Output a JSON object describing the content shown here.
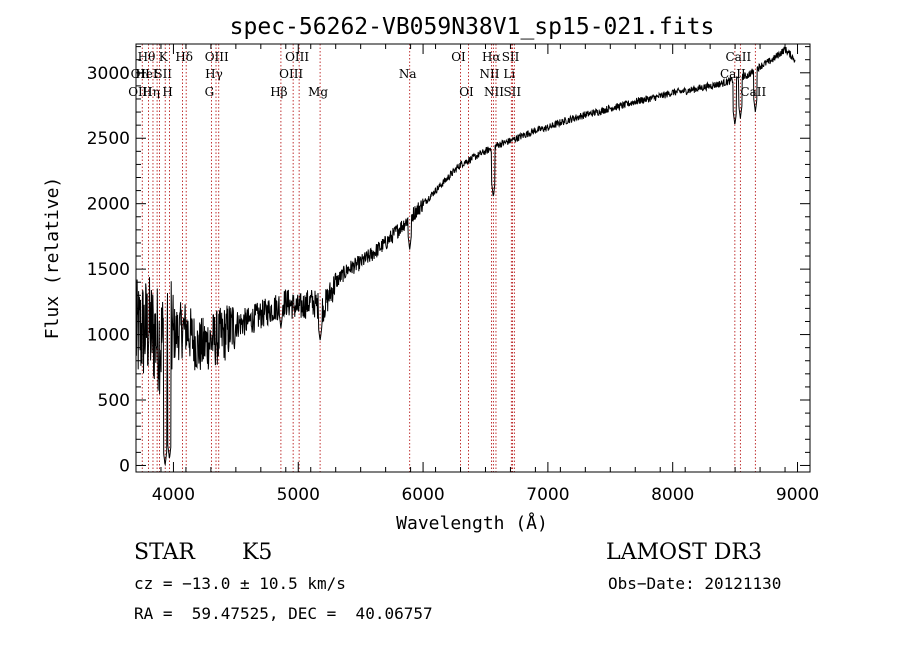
{
  "chart_data": {
    "type": "line",
    "title": "spec-56262-VB059N38V1_sp15-021.fits",
    "xlabel": "Wavelength (Å)",
    "ylabel": "Flux (relative)",
    "xlim": [
      3700,
      9100
    ],
    "ylim": [
      -50,
      3220
    ],
    "xticks": [
      4000,
      5000,
      6000,
      7000,
      8000,
      9000
    ],
    "xtick_labels": [
      "4000",
      "5000",
      "6000",
      "7000",
      "8000",
      "9000"
    ],
    "yticks": [
      0,
      500,
      1000,
      1500,
      2000,
      2500,
      3000
    ],
    "ytick_labels": [
      "0",
      "500",
      "1000",
      "1500",
      "2000",
      "2500",
      "3000"
    ],
    "series": [
      {
        "name": "flux",
        "anchors": [
          [
            3700,
            1000
          ],
          [
            3800,
            1050
          ],
          [
            3900,
            950
          ],
          [
            4000,
            1000
          ],
          [
            4100,
            1050
          ],
          [
            4200,
            900
          ],
          [
            4300,
            950
          ],
          [
            4400,
            1000
          ],
          [
            4500,
            1080
          ],
          [
            4600,
            1100
          ],
          [
            4700,
            1150
          ],
          [
            4800,
            1200
          ],
          [
            4900,
            1250
          ],
          [
            5000,
            1200
          ],
          [
            5100,
            1250
          ],
          [
            5200,
            1200
          ],
          [
            5300,
            1400
          ],
          [
            5400,
            1500
          ],
          [
            5500,
            1550
          ],
          [
            5600,
            1620
          ],
          [
            5700,
            1700
          ],
          [
            5800,
            1800
          ],
          [
            5900,
            1900
          ],
          [
            6000,
            2000
          ],
          [
            6100,
            2100
          ],
          [
            6200,
            2200
          ],
          [
            6300,
            2300
          ],
          [
            6400,
            2350
          ],
          [
            6500,
            2400
          ],
          [
            6600,
            2450
          ],
          [
            6700,
            2480
          ],
          [
            6800,
            2520
          ],
          [
            6900,
            2560
          ],
          [
            7000,
            2580
          ],
          [
            7100,
            2620
          ],
          [
            7200,
            2650
          ],
          [
            7300,
            2680
          ],
          [
            7400,
            2700
          ],
          [
            7500,
            2730
          ],
          [
            7600,
            2750
          ],
          [
            7700,
            2780
          ],
          [
            7800,
            2800
          ],
          [
            7900,
            2820
          ],
          [
            8000,
            2850
          ],
          [
            8100,
            2860
          ],
          [
            8200,
            2880
          ],
          [
            8300,
            2900
          ],
          [
            8400,
            2920
          ],
          [
            8500,
            2950
          ],
          [
            8600,
            2980
          ],
          [
            8700,
            3050
          ],
          [
            8800,
            3100
          ],
          [
            8900,
            3180
          ],
          [
            8980,
            3100
          ]
        ],
        "dips": [
          [
            3933,
            0
          ],
          [
            3968,
            50
          ],
          [
            4861,
            1050
          ],
          [
            5175,
            950
          ],
          [
            5893,
            1650
          ],
          [
            6563,
            2050
          ],
          [
            8498,
            2600
          ],
          [
            8542,
            2650
          ],
          [
            8662,
            2700
          ]
        ]
      }
    ],
    "line_markers": [
      {
        "w": 3750,
        "labels": [
          {
            "t": "OII",
            "row": 2
          },
          {
            "t": "OIII",
            "row": 3
          }
        ]
      },
      {
        "w": 3800,
        "labels": [
          {
            "t": "Hθ",
            "row": 1
          },
          {
            "t": "HeI",
            "row": 2
          }
        ]
      },
      {
        "w": 3836,
        "labels": [
          {
            "t": "Hη",
            "row": 3
          }
        ]
      },
      {
        "w": 3869,
        "labels": []
      },
      {
        "w": 3889,
        "labels": []
      },
      {
        "w": 3934,
        "labels": [
          {
            "t": "K",
            "row": 1
          },
          {
            "t": "SII",
            "row": 2
          }
        ]
      },
      {
        "w": 3969,
        "labels": [
          {
            "t": "H",
            "row": 3
          }
        ]
      },
      {
        "w": 4072,
        "labels": []
      },
      {
        "w": 4102,
        "labels": [
          {
            "t": "Hδ",
            "row": 1
          }
        ]
      },
      {
        "w": 4304,
        "labels": [
          {
            "t": "G",
            "row": 3
          }
        ]
      },
      {
        "w": 4341,
        "labels": [
          {
            "t": "Hγ",
            "row": 2
          }
        ]
      },
      {
        "w": 4363,
        "labels": [
          {
            "t": "OIII",
            "row": 1
          }
        ]
      },
      {
        "w": 4861,
        "labels": [
          {
            "t": "Hβ",
            "row": 3
          }
        ]
      },
      {
        "w": 4959,
        "labels": [
          {
            "t": "OIII",
            "row": 2
          }
        ]
      },
      {
        "w": 5007,
        "labels": [
          {
            "t": "OIII",
            "row": 1
          }
        ]
      },
      {
        "w": 5175,
        "labels": [
          {
            "t": "Mg",
            "row": 3
          }
        ]
      },
      {
        "w": 5893,
        "labels": [
          {
            "t": "Na",
            "row": 2
          }
        ]
      },
      {
        "w": 6300,
        "labels": [
          {
            "t": "OI",
            "row": 1
          }
        ]
      },
      {
        "w": 6364,
        "labels": [
          {
            "t": "OI",
            "row": 3
          }
        ]
      },
      {
        "w": 6548,
        "labels": [
          {
            "t": "NII",
            "row": 2
          }
        ]
      },
      {
        "w": 6563,
        "labels": [
          {
            "t": "Hα",
            "row": 1
          }
        ]
      },
      {
        "w": 6584,
        "labels": [
          {
            "t": "NII",
            "row": 3
          }
        ]
      },
      {
        "w": 6707,
        "labels": [
          {
            "t": "Li",
            "row": 2
          }
        ]
      },
      {
        "w": 6717,
        "labels": [
          {
            "t": "SII",
            "row": 1
          }
        ]
      },
      {
        "w": 6731,
        "labels": [
          {
            "t": "SII",
            "row": 3
          }
        ]
      },
      {
        "w": 8498,
        "labels": [
          {
            "t": "CaII",
            "row": 2
          }
        ]
      },
      {
        "w": 8542,
        "labels": [
          {
            "t": "CaII",
            "row": 1
          }
        ]
      },
      {
        "w": 8662,
        "labels": [
          {
            "t": "CaII",
            "row": 3
          }
        ]
      }
    ]
  },
  "info": {
    "object_class": "STAR",
    "subclass": "K5",
    "survey": "LAMOST DR3",
    "cz": "cz = −13.0 ± 10.5 km/s",
    "obs_date": "Obs−Date: 20121130",
    "coords": "RA =  59.47525, DEC =  40.06757"
  }
}
